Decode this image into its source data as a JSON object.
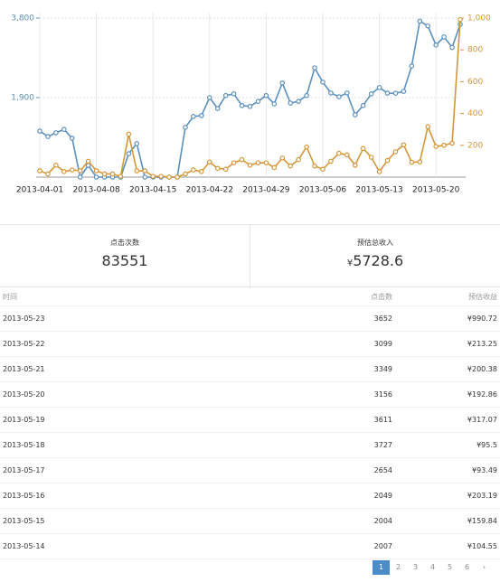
{
  "chart_data": {
    "type": "line",
    "categories": [
      "2013-04-01",
      null,
      null,
      null,
      null,
      null,
      null,
      "2013-04-08",
      null,
      null,
      null,
      null,
      null,
      null,
      "2013-04-15",
      null,
      null,
      null,
      null,
      null,
      null,
      "2013-04-22",
      null,
      null,
      null,
      null,
      null,
      null,
      "2013-04-29",
      null,
      null,
      null,
      null,
      null,
      null,
      "2013-05-06",
      null,
      null,
      null,
      null,
      null,
      null,
      "2013-05-13",
      null,
      null,
      null,
      null,
      null,
      null,
      "2013-05-20",
      null,
      null,
      null
    ],
    "series": [
      {
        "color": "#5b8fbd",
        "values": [
          1100,
          970,
          1060,
          1140,
          930,
          0,
          280,
          0,
          0,
          0,
          0,
          560,
          800,
          0,
          0,
          0,
          0,
          0,
          1190,
          1450,
          1470,
          1900,
          1640,
          1950,
          1990,
          1710,
          1690,
          1810,
          1950,
          1750,
          2250,
          1770,
          1810,
          1950,
          2610,
          2270,
          2010,
          1920,
          2010,
          1490,
          1710,
          1990,
          2140,
          2007,
          2004,
          2049,
          2654,
          3727,
          3611,
          3156,
          3349,
          3099,
          3652
        ]
      },
      {
        "color": "#d4963a",
        "axis": "y2",
        "values": [
          40,
          20,
          75,
          35,
          45,
          40,
          100,
          40,
          20,
          20,
          5,
          270,
          40,
          40,
          5,
          5,
          0,
          0,
          20,
          45,
          35,
          95,
          55,
          50,
          90,
          110,
          75,
          90,
          90,
          60,
          120,
          70,
          110,
          190,
          70,
          50,
          100,
          150,
          140,
          75,
          180,
          125,
          35,
          104.55,
          159.84,
          203.19,
          93.49,
          95.5,
          317.07,
          192.86,
          200.38,
          213.25,
          990.72
        ]
      }
    ],
    "ylim": [
      0,
      3800
    ],
    "yticks": [
      {
        "value": 1900,
        "label": "1,900"
      },
      {
        "value": 3800,
        "label": "3,800"
      }
    ],
    "y2lim": [
      0,
      1000
    ],
    "y2ticks": [
      200,
      400,
      600,
      800,
      {
        "value": 1000,
        "label": "1,000"
      }
    ],
    "grid": true
  },
  "stats": [
    {
      "label": "点击次数",
      "value": "83551"
    },
    {
      "label": "预估总收入",
      "currency": "¥",
      "value": "5728.6"
    }
  ],
  "table": {
    "header": [
      "时间",
      "点击数",
      "预估收益"
    ],
    "rows": [
      [
        "2013-05-23",
        3652,
        "¥990.72"
      ],
      [
        "2013-05-22",
        3099,
        "¥213.25"
      ],
      [
        "2013-05-21",
        3349,
        "¥200.38"
      ],
      [
        "2013-05-20",
        3156,
        "¥192.86"
      ],
      [
        "2013-05-19",
        3611,
        "¥317.07"
      ],
      [
        "2013-05-18",
        3727,
        "¥95.5"
      ],
      [
        "2013-05-17",
        2654,
        "¥93.49"
      ],
      [
        "2013-05-16",
        2049,
        "¥203.19"
      ],
      [
        "2013-05-15",
        2004,
        "¥159.84"
      ],
      [
        "2013-05-14",
        2007,
        "¥104.55"
      ]
    ]
  },
  "pagination": {
    "pages": [
      "1",
      "2",
      "3",
      "4",
      "5",
      "6"
    ],
    "next": "›"
  }
}
